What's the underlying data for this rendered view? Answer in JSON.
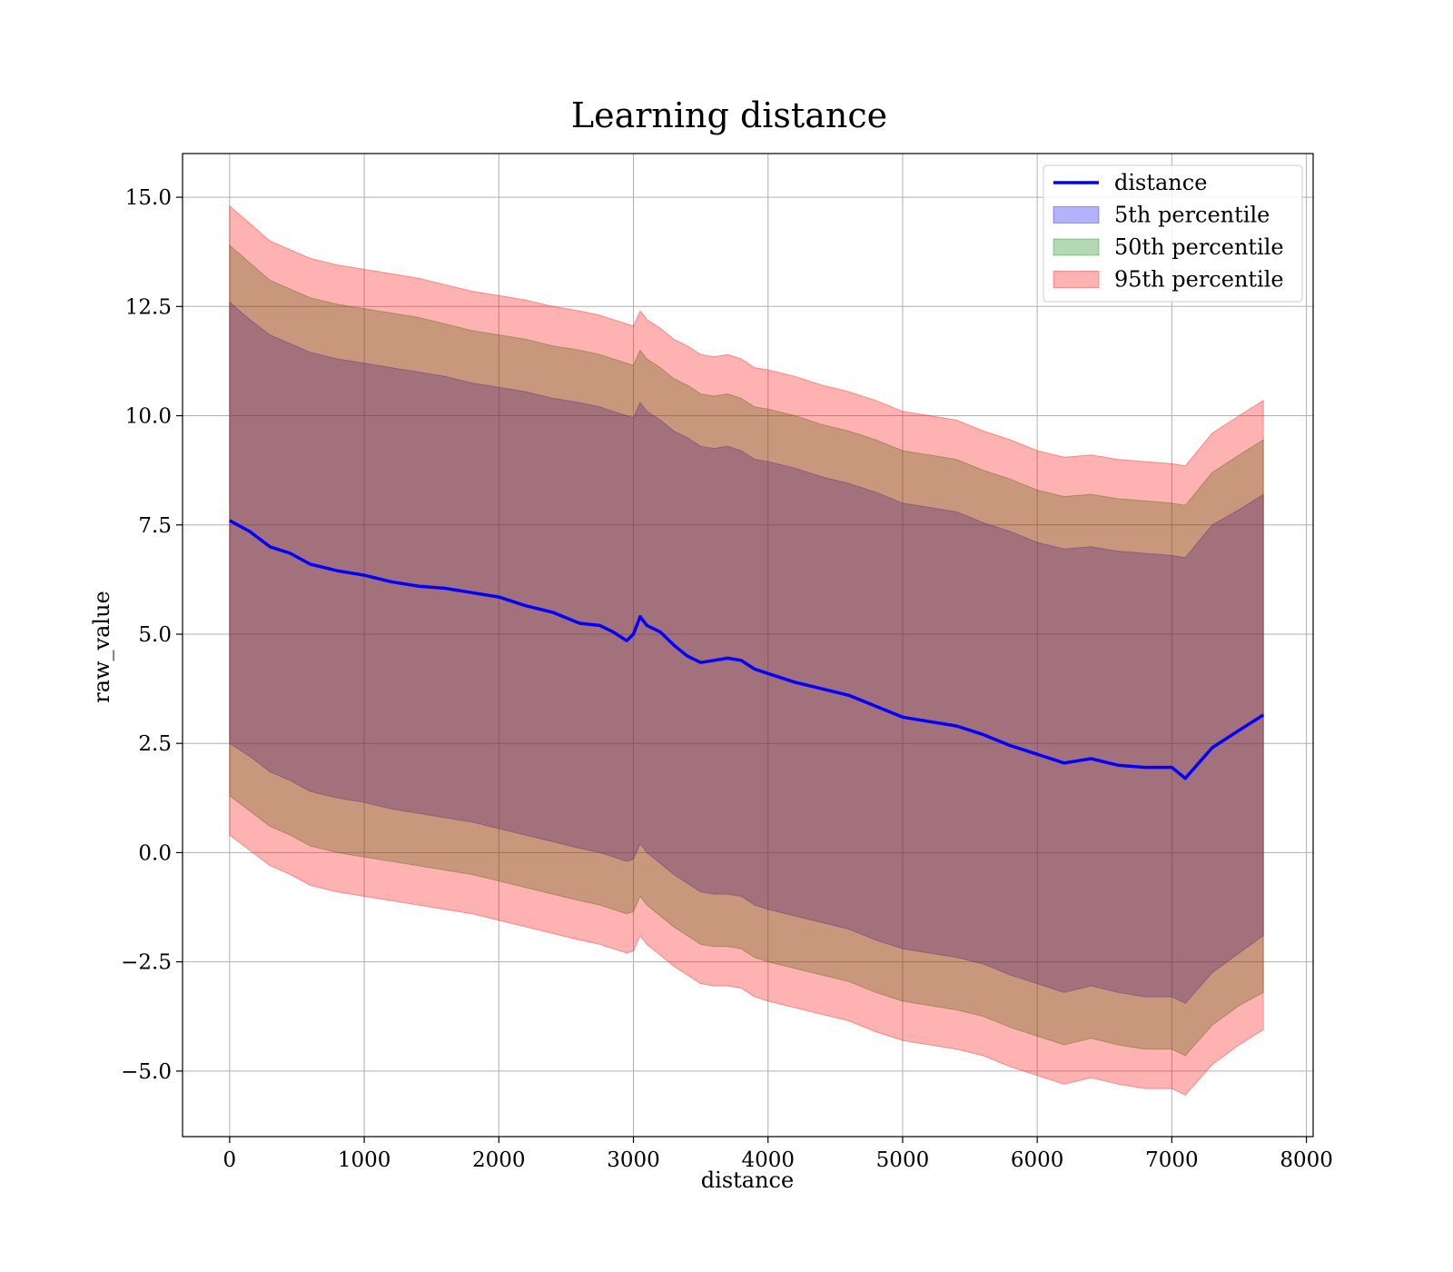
{
  "chart_data": {
    "type": "line",
    "title": "Learning distance",
    "xlabel": "distance",
    "ylabel": "raw_value",
    "xlim": [
      -350,
      8050
    ],
    "ylim": [
      -6.5,
      16.0
    ],
    "xticks": [
      0,
      1000,
      2000,
      3000,
      4000,
      5000,
      6000,
      7000,
      8000
    ],
    "xtick_labels": [
      "0",
      "1000",
      "2000",
      "3000",
      "4000",
      "5000",
      "6000",
      "7000",
      "8000"
    ],
    "yticks": [
      -5.0,
      -2.5,
      0.0,
      2.5,
      5.0,
      7.5,
      10.0,
      12.5,
      15.0
    ],
    "ytick_labels": [
      "−5.0",
      "−2.5",
      "0.0",
      "2.5",
      "5.0",
      "7.5",
      "10.0",
      "12.5",
      "15.0"
    ],
    "grid": true,
    "legend_position": "top-right",
    "x": [
      0,
      150,
      300,
      450,
      600,
      800,
      1000,
      1200,
      1400,
      1600,
      1800,
      2000,
      2200,
      2400,
      2600,
      2750,
      2850,
      2950,
      3000,
      3050,
      3100,
      3200,
      3300,
      3400,
      3500,
      3600,
      3700,
      3800,
      3900,
      4000,
      4200,
      4400,
      4600,
      4800,
      5000,
      5200,
      5400,
      5600,
      5800,
      6000,
      6200,
      6400,
      6600,
      6800,
      7000,
      7100,
      7300,
      7500,
      7680
    ],
    "series": [
      {
        "name": "distance",
        "kind": "line",
        "color": "#0000ff",
        "values": [
          7.6,
          7.35,
          7.0,
          6.85,
          6.6,
          6.45,
          6.35,
          6.2,
          6.1,
          6.05,
          5.95,
          5.85,
          5.65,
          5.5,
          5.25,
          5.2,
          5.05,
          4.85,
          5.0,
          5.4,
          5.2,
          5.05,
          4.75,
          4.5,
          4.35,
          4.4,
          4.45,
          4.4,
          4.2,
          4.1,
          3.9,
          3.75,
          3.6,
          3.35,
          3.1,
          3.0,
          2.9,
          2.7,
          2.45,
          2.25,
          2.05,
          2.15,
          2.0,
          1.95,
          1.95,
          1.7,
          2.4,
          2.8,
          3.15
        ]
      },
      {
        "name": "5th percentile",
        "kind": "band",
        "color": "#0000ff",
        "upper": [
          12.6,
          12.2,
          11.85,
          11.65,
          11.45,
          11.3,
          11.2,
          11.1,
          11.0,
          10.9,
          10.75,
          10.65,
          10.55,
          10.4,
          10.3,
          10.2,
          10.1,
          10.0,
          9.95,
          10.3,
          10.1,
          9.9,
          9.65,
          9.5,
          9.3,
          9.25,
          9.3,
          9.2,
          9.0,
          8.95,
          8.8,
          8.6,
          8.45,
          8.25,
          8.0,
          7.9,
          7.8,
          7.55,
          7.35,
          7.1,
          6.95,
          7.0,
          6.9,
          6.85,
          6.8,
          6.75,
          7.5,
          7.85,
          8.2
        ],
        "lower": [
          2.5,
          2.2,
          1.85,
          1.65,
          1.4,
          1.25,
          1.15,
          1.0,
          0.9,
          0.8,
          0.7,
          0.55,
          0.4,
          0.25,
          0.1,
          0.0,
          -0.1,
          -0.2,
          -0.15,
          0.2,
          0.0,
          -0.25,
          -0.5,
          -0.7,
          -0.9,
          -0.95,
          -0.95,
          -1.0,
          -1.2,
          -1.3,
          -1.45,
          -1.6,
          -1.75,
          -2.0,
          -2.2,
          -2.3,
          -2.4,
          -2.55,
          -2.8,
          -3.0,
          -3.2,
          -3.05,
          -3.2,
          -3.3,
          -3.3,
          -3.45,
          -2.75,
          -2.3,
          -1.9
        ]
      },
      {
        "name": "50th percentile",
        "kind": "band",
        "color": "#008000",
        "upper": [
          13.9,
          13.5,
          13.1,
          12.9,
          12.7,
          12.55,
          12.45,
          12.35,
          12.25,
          12.1,
          11.95,
          11.85,
          11.75,
          11.6,
          11.5,
          11.4,
          11.3,
          11.2,
          11.15,
          11.5,
          11.3,
          11.1,
          10.85,
          10.7,
          10.5,
          10.45,
          10.5,
          10.4,
          10.2,
          10.15,
          10.0,
          9.8,
          9.65,
          9.45,
          9.2,
          9.1,
          9.0,
          8.75,
          8.55,
          8.3,
          8.15,
          8.2,
          8.1,
          8.05,
          8.0,
          7.95,
          8.7,
          9.1,
          9.45
        ],
        "lower": [
          1.3,
          0.95,
          0.6,
          0.4,
          0.15,
          0.0,
          -0.1,
          -0.2,
          -0.3,
          -0.4,
          -0.5,
          -0.65,
          -0.8,
          -0.95,
          -1.1,
          -1.2,
          -1.3,
          -1.4,
          -1.35,
          -1.0,
          -1.2,
          -1.45,
          -1.7,
          -1.9,
          -2.1,
          -2.15,
          -2.15,
          -2.2,
          -2.4,
          -2.5,
          -2.65,
          -2.8,
          -2.95,
          -3.2,
          -3.4,
          -3.5,
          -3.6,
          -3.75,
          -4.0,
          -4.2,
          -4.4,
          -4.25,
          -4.4,
          -4.5,
          -4.5,
          -4.65,
          -3.95,
          -3.5,
          -3.2
        ]
      },
      {
        "name": "95th percentile",
        "kind": "band",
        "color": "#ff0000",
        "upper": [
          14.8,
          14.4,
          14.0,
          13.8,
          13.6,
          13.45,
          13.35,
          13.25,
          13.15,
          13.0,
          12.85,
          12.75,
          12.65,
          12.5,
          12.4,
          12.3,
          12.2,
          12.1,
          12.05,
          12.4,
          12.2,
          12.0,
          11.75,
          11.6,
          11.4,
          11.35,
          11.4,
          11.3,
          11.1,
          11.05,
          10.9,
          10.7,
          10.55,
          10.35,
          10.1,
          10.0,
          9.9,
          9.65,
          9.45,
          9.2,
          9.05,
          9.1,
          9.0,
          8.95,
          8.9,
          8.85,
          9.6,
          10.0,
          10.35
        ],
        "lower": [
          0.4,
          0.05,
          -0.3,
          -0.5,
          -0.75,
          -0.9,
          -1.0,
          -1.1,
          -1.2,
          -1.3,
          -1.4,
          -1.55,
          -1.7,
          -1.85,
          -2.0,
          -2.1,
          -2.2,
          -2.3,
          -2.25,
          -1.9,
          -2.1,
          -2.35,
          -2.6,
          -2.8,
          -3.0,
          -3.05,
          -3.05,
          -3.1,
          -3.3,
          -3.4,
          -3.55,
          -3.7,
          -3.85,
          -4.1,
          -4.3,
          -4.4,
          -4.5,
          -4.65,
          -4.9,
          -5.1,
          -5.3,
          -5.15,
          -5.3,
          -5.4,
          -5.4,
          -5.55,
          -4.85,
          -4.4,
          -4.05
        ]
      }
    ]
  }
}
